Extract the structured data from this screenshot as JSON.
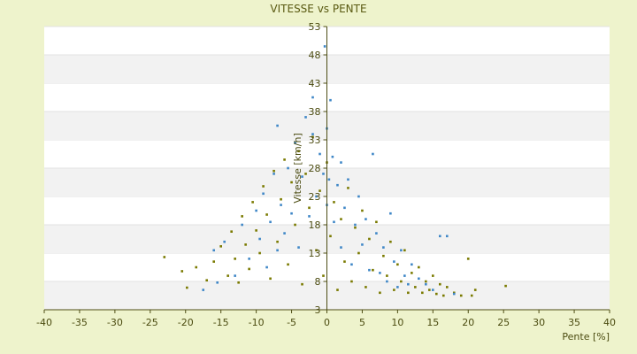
{
  "chart_data": {
    "type": "scatter",
    "title": "VITESSE vs PENTE",
    "xlabel": "Pente [%]",
    "ylabel": "Vitesse [km/h]",
    "xlim": [
      -40,
      40
    ],
    "ylim": [
      3,
      53
    ],
    "x_ticks": [
      "-40",
      "-35",
      "-30",
      "-25",
      "-20",
      "-15",
      "-10",
      "-5",
      "0",
      "5",
      "10",
      "15",
      "20",
      "25",
      "30",
      "35",
      "40"
    ],
    "y_ticks": [
      "3",
      "8",
      "13",
      "18",
      "23",
      "28",
      "33",
      "38",
      "43",
      "48",
      "53"
    ],
    "grid": "horizontal banded",
    "background": "#eef3cc",
    "plot_background": "#ffffff",
    "band_color": "#f2f2f2",
    "series": [
      {
        "color": "#7a7a00",
        "points": [
          [
            -23.0,
            12.3
          ],
          [
            -20.5,
            9.8
          ],
          [
            -19.8,
            6.9
          ],
          [
            -18.5,
            10.5
          ],
          [
            -17.0,
            8.2
          ],
          [
            -16.0,
            11.5
          ],
          [
            -15.0,
            14.2
          ],
          [
            -14.0,
            9.0
          ],
          [
            -13.5,
            16.8
          ],
          [
            -13.0,
            12.0
          ],
          [
            -12.5,
            7.8
          ],
          [
            -12.0,
            19.5
          ],
          [
            -11.5,
            14.5
          ],
          [
            -11.0,
            10.2
          ],
          [
            -10.5,
            22.0
          ],
          [
            -10.0,
            17.0
          ],
          [
            -9.5,
            13.0
          ],
          [
            -9.0,
            24.8
          ],
          [
            -8.5,
            19.8
          ],
          [
            -8.0,
            8.5
          ],
          [
            -7.5,
            27.5
          ],
          [
            -7.0,
            15.0
          ],
          [
            -6.5,
            22.5
          ],
          [
            -6.0,
            29.5
          ],
          [
            -5.5,
            11.0
          ],
          [
            -5.0,
            25.5
          ],
          [
            -4.5,
            18.0
          ],
          [
            -4.0,
            31.0
          ],
          [
            -3.5,
            7.5
          ],
          [
            -3.0,
            27.0
          ],
          [
            -2.5,
            21.0
          ],
          [
            -2.0,
            33.5
          ],
          [
            -1.5,
            13.5
          ],
          [
            -1.0,
            24.0
          ],
          [
            -0.5,
            9.0
          ],
          [
            0.0,
            29.0
          ],
          [
            0.5,
            16.0
          ],
          [
            1.0,
            22.0
          ],
          [
            1.5,
            6.5
          ],
          [
            2.0,
            19.0
          ],
          [
            2.5,
            11.5
          ],
          [
            3.0,
            24.5
          ],
          [
            3.5,
            8.0
          ],
          [
            4.0,
            17.5
          ],
          [
            4.5,
            13.0
          ],
          [
            5.0,
            20.5
          ],
          [
            5.5,
            7.0
          ],
          [
            6.0,
            15.5
          ],
          [
            6.5,
            10.0
          ],
          [
            7.0,
            18.5
          ],
          [
            7.5,
            6.0
          ],
          [
            8.0,
            12.5
          ],
          [
            8.5,
            9.0
          ],
          [
            9.0,
            15.0
          ],
          [
            9.5,
            6.5
          ],
          [
            10.0,
            11.0
          ],
          [
            10.5,
            8.0
          ],
          [
            11.0,
            13.5
          ],
          [
            11.5,
            6.0
          ],
          [
            12.0,
            9.5
          ],
          [
            12.5,
            7.0
          ],
          [
            13.0,
            10.5
          ],
          [
            13.5,
            6.0
          ],
          [
            14.0,
            8.0
          ],
          [
            14.5,
            6.5
          ],
          [
            15.0,
            9.0
          ],
          [
            15.5,
            5.8
          ],
          [
            16.0,
            7.5
          ],
          [
            16.5,
            5.5
          ],
          [
            17.0,
            7.0
          ],
          [
            18.0,
            6.0
          ],
          [
            19.0,
            5.5
          ],
          [
            20.0,
            12.0
          ],
          [
            20.5,
            5.5
          ],
          [
            21.0,
            6.5
          ],
          [
            25.3,
            7.2
          ]
        ]
      },
      {
        "color": "#3f87c7",
        "points": [
          [
            -17.5,
            6.5
          ],
          [
            -16.0,
            13.5
          ],
          [
            -15.5,
            7.8
          ],
          [
            -14.5,
            15.0
          ],
          [
            -13.0,
            9.0
          ],
          [
            -12.0,
            18.0
          ],
          [
            -11.0,
            12.0
          ],
          [
            -10.0,
            20.5
          ],
          [
            -9.5,
            15.5
          ],
          [
            -9.0,
            23.5
          ],
          [
            -8.5,
            10.5
          ],
          [
            -8.0,
            18.5
          ],
          [
            -7.5,
            27.0
          ],
          [
            -7.0,
            13.5
          ],
          [
            -7.0,
            35.5
          ],
          [
            -6.5,
            21.5
          ],
          [
            -6.0,
            16.5
          ],
          [
            -5.5,
            28.0
          ],
          [
            -5.0,
            20.0
          ],
          [
            -4.5,
            32.5
          ],
          [
            -4.0,
            14.0
          ],
          [
            -3.5,
            26.5
          ],
          [
            -3.0,
            37.0
          ],
          [
            -2.5,
            19.5
          ],
          [
            -2.0,
            34.0
          ],
          [
            -2.0,
            40.5
          ],
          [
            -1.5,
            23.0
          ],
          [
            -1.0,
            30.5
          ],
          [
            -0.5,
            27.0
          ],
          [
            -0.3,
            49.5
          ],
          [
            0.0,
            21.5
          ],
          [
            0.0,
            35.0
          ],
          [
            0.3,
            26.0
          ],
          [
            0.5,
            40.0
          ],
          [
            0.8,
            30.0
          ],
          [
            1.0,
            18.5
          ],
          [
            1.5,
            25.0
          ],
          [
            2.0,
            29.0
          ],
          [
            2.0,
            14.0
          ],
          [
            2.5,
            21.0
          ],
          [
            3.0,
            26.0
          ],
          [
            3.5,
            11.0
          ],
          [
            4.0,
            18.0
          ],
          [
            4.5,
            23.0
          ],
          [
            5.0,
            14.5
          ],
          [
            5.5,
            19.0
          ],
          [
            6.0,
            10.0
          ],
          [
            6.5,
            30.5
          ],
          [
            7.0,
            16.5
          ],
          [
            7.5,
            9.5
          ],
          [
            8.0,
            14.0
          ],
          [
            8.5,
            8.0
          ],
          [
            9.0,
            20.0
          ],
          [
            9.5,
            11.5
          ],
          [
            10.0,
            7.0
          ],
          [
            10.5,
            13.5
          ],
          [
            11.0,
            9.0
          ],
          [
            11.5,
            7.5
          ],
          [
            12.0,
            11.0
          ],
          [
            13.0,
            8.5
          ],
          [
            14.0,
            7.5
          ],
          [
            15.0,
            6.5
          ],
          [
            16.0,
            16.0
          ],
          [
            17.0,
            16.0
          ],
          [
            18.0,
            5.8
          ]
        ]
      }
    ]
  }
}
